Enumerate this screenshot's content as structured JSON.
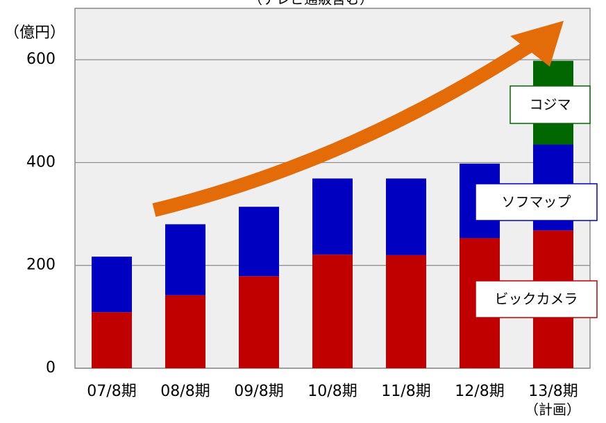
{
  "chart_data": {
    "type": "stacked_bar",
    "title": "（テレビ通販含む）",
    "y_unit": "（億円）",
    "categories": [
      "07/8期",
      "08/8期",
      "09/8期",
      "10/8期",
      "11/8期",
      "12/8期",
      "13/8期"
    ],
    "category_note": "（計画）",
    "series": [
      {
        "name": "ビックカメラ",
        "color": "#c00000",
        "values": [
          109,
          142,
          179,
          221,
          220,
          253,
          268
        ]
      },
      {
        "name": "ソフマップ",
        "color": "#0000c0",
        "values": [
          108,
          138,
          135,
          148,
          149,
          145,
          167
        ]
      },
      {
        "name": "コジマ",
        "color": "#006600",
        "values": [
          null,
          null,
          null,
          null,
          null,
          null,
          163
        ]
      }
    ],
    "ylim": [
      0,
      700
    ],
    "yticks": [
      0,
      200,
      400,
      600
    ],
    "grid": true
  }
}
